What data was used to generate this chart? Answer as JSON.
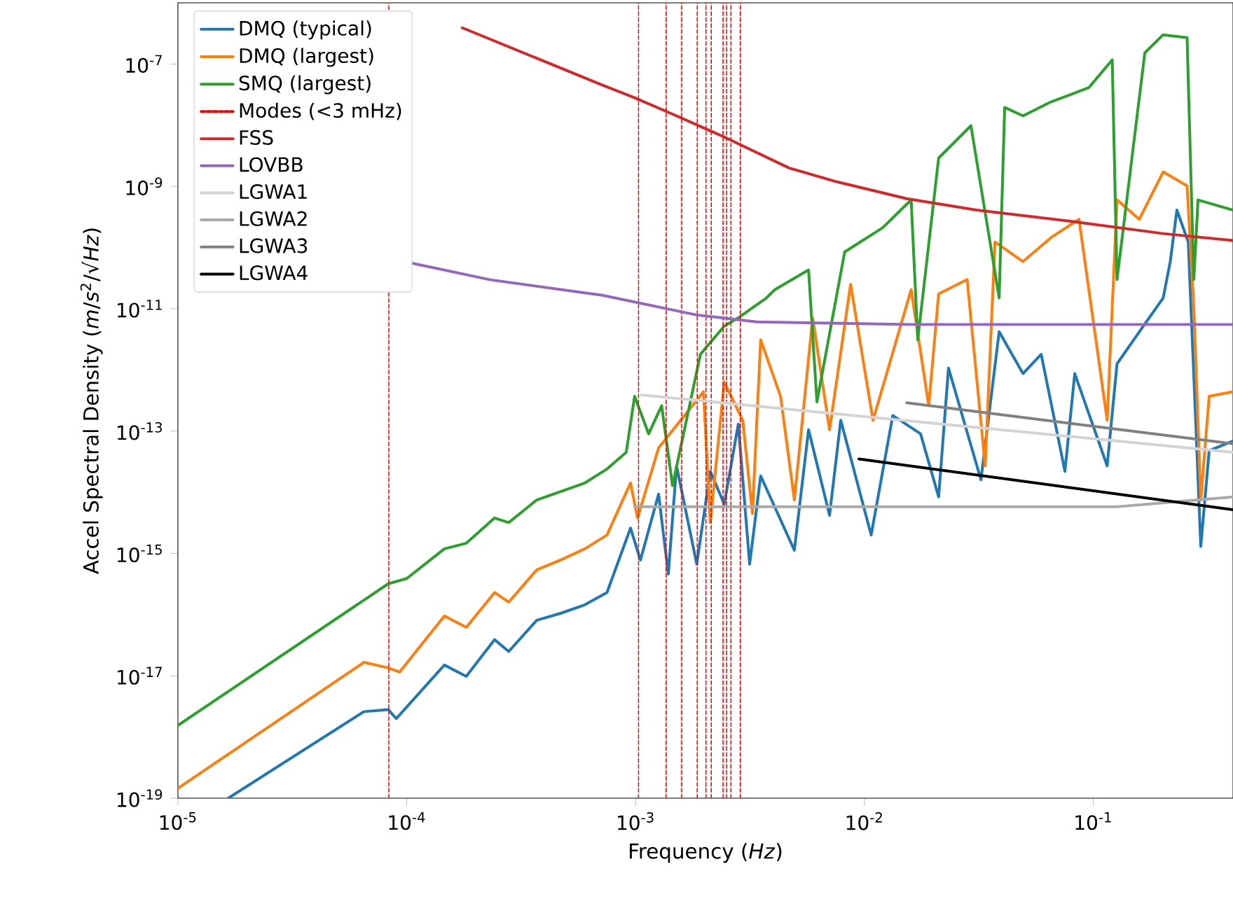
{
  "chart_data": {
    "type": "line",
    "xlabel": "Frequency (*Hz*)",
    "ylabel": "Accel Spectral Density (*m*/*s*$^{2}$/√*Hz*)",
    "log": "xy",
    "legend": "top left",
    "xlim": [
      1e-05,
      0.408
    ],
    "ylim": [
      1e-19,
      1e-06
    ],
    "xticks": [
      {
        "value": 1e-05,
        "label": "10$^{-5}$"
      },
      {
        "value": 0.0001,
        "label": "10$^{-4}$"
      },
      {
        "value": 0.001,
        "label": "10$^{-3}$"
      },
      {
        "value": 0.01,
        "label": "10$^{-2}$"
      },
      {
        "value": 0.1,
        "label": "10$^{-1}$"
      }
    ],
    "yticks": [
      {
        "value": 1e-19,
        "label": "10$^{-19}$"
      },
      {
        "value": 1e-17,
        "label": "10$^{-17}$"
      },
      {
        "value": 1e-15,
        "label": "10$^{-15}$"
      },
      {
        "value": 1e-13,
        "label": "10$^{-13}$"
      },
      {
        "value": 1e-11,
        "label": "10$^{-11}$"
      },
      {
        "value": 1e-09,
        "label": "10$^{-9}$"
      },
      {
        "value": 1e-07,
        "label": "10$^{-7}$"
      }
    ],
    "series": [
      {
        "name": "DMQ (typical)",
        "color": "#1f77b4",
        "x": [
          1.66e-05,
          6.5e-05,
          8.3e-05,
          9e-05,
          0.000146,
          0.000182,
          0.000242,
          0.000279,
          0.00037,
          0.00047,
          0.0006,
          0.00075,
          0.00095,
          0.00105,
          0.00126,
          0.00139,
          0.00151,
          0.00185,
          0.00212,
          0.00244,
          0.00281,
          0.00315,
          0.00352,
          0.00494,
          0.0057,
          0.00704,
          0.00788,
          0.0107,
          0.0133,
          0.0176,
          0.0211,
          0.0233,
          0.0323,
          0.0388,
          0.0493,
          0.0592,
          0.0752,
          0.083,
          0.115,
          0.127,
          0.159,
          0.202,
          0.217,
          0.232,
          0.26,
          0.279,
          0.295,
          0.321,
          0.408
        ],
        "values": [
          1e-19,
          2.6e-18,
          2.8e-18,
          2e-18,
          1.5e-17,
          9.8e-18,
          3.9e-17,
          2.5e-17,
          8.1e-17,
          1.05e-16,
          1.45e-16,
          2.3e-16,
          2.6e-15,
          7.8e-16,
          9.3e-15,
          4.6e-16,
          2.7e-14,
          6.7e-16,
          2.2e-14,
          6.4e-15,
          1.3e-13,
          6.7e-16,
          1.85e-14,
          1.13e-15,
          1.05e-13,
          4.2e-15,
          1.5e-13,
          2e-15,
          1.8e-13,
          9e-14,
          8.4e-15,
          1.07e-12,
          1.6e-14,
          4.2e-12,
          8.7e-13,
          1.8e-12,
          2.2e-14,
          8.7e-13,
          2.7e-14,
          1.26e-12,
          4.2e-12,
          1.5e-11,
          5.9e-11,
          4.1e-10,
          1.23e-10,
          2.2e-13,
          1.3e-15,
          4.8e-14,
          6.9e-14
        ]
      },
      {
        "name": "DMQ (largest)",
        "color": "#ff7f0e",
        "x": [
          1e-05,
          6.5e-05,
          8.3e-05,
          9.3e-05,
          0.000146,
          0.000182,
          0.000242,
          0.000279,
          0.00037,
          0.00047,
          0.0006,
          0.00075,
          0.00095,
          0.00102,
          0.00126,
          0.00198,
          0.00212,
          0.00244,
          0.00294,
          0.00324,
          0.00352,
          0.0043,
          0.00494,
          0.00594,
          0.00704,
          0.0087,
          0.0109,
          0.016,
          0.0191,
          0.0211,
          0.0281,
          0.0337,
          0.0372,
          0.0493,
          0.0653,
          0.0866,
          0.115,
          0.127,
          0.159,
          0.202,
          0.257,
          0.275,
          0.295,
          0.321,
          0.408
        ],
        "values": [
          1.45e-19,
          1.66e-17,
          1.35e-17,
          1.15e-17,
          9.5e-17,
          6.2e-17,
          2.3e-16,
          1.6e-16,
          5.4e-16,
          7.8e-16,
          1.19e-15,
          2e-15,
          1.42e-14,
          3.8e-15,
          5.3e-14,
          4.4e-13,
          3.2e-15,
          6.3e-13,
          1.5e-13,
          4.5e-15,
          3.1e-12,
          3.7e-13,
          7.5e-15,
          7.1e-12,
          1.05e-13,
          2.5e-11,
          1.5e-13,
          2.05e-11,
          2.6e-13,
          1.75e-11,
          3e-11,
          2.7e-14,
          1.23e-10,
          5.9e-11,
          1.45e-10,
          2.9e-10,
          1.5e-13,
          6e-10,
          2.9e-10,
          1.72e-09,
          1.02e-09,
          1.04e-11,
          7.5e-15,
          3.7e-13,
          4.4e-13
        ]
      },
      {
        "name": "SMQ (largest)",
        "color": "#2ca02c",
        "x": [
          1e-05,
          8.3e-05,
          0.0001,
          0.000146,
          0.000182,
          0.000242,
          0.000279,
          0.00037,
          0.0006,
          0.00075,
          0.00091,
          0.00099,
          0.00114,
          0.0013,
          0.00145,
          0.00192,
          0.00244,
          0.00281,
          0.00373,
          0.00406,
          0.0057,
          0.0062,
          0.0082,
          0.012,
          0.016,
          0.0171,
          0.0211,
          0.0292,
          0.0388,
          0.041,
          0.0493,
          0.0653,
          0.0956,
          0.121,
          0.127,
          0.168,
          0.202,
          0.257,
          0.275,
          0.287,
          0.408
        ],
        "values": [
          1.55e-18,
          3.2e-16,
          3.9e-16,
          1.19e-15,
          1.47e-15,
          3.8e-15,
          3.2e-15,
          7.5e-15,
          1.42e-14,
          2.4e-14,
          4.5e-14,
          3.7e-13,
          9e-14,
          2.6e-13,
          1.28e-14,
          1.8e-12,
          5.2e-12,
          7.1e-12,
          1.5e-11,
          2.05e-11,
          4.3e-11,
          3e-13,
          8.5e-11,
          2.1e-10,
          6e-10,
          3.1e-12,
          2.9e-09,
          9.8e-09,
          1.5e-11,
          1.95e-08,
          1.42e-08,
          2.4e-08,
          4.1e-08,
          1.17e-07,
          3e-11,
          1.52e-07,
          3e-07,
          2.7e-07,
          3e-11,
          6e-10,
          4.1e-10
        ]
      },
      {
        "name": "FSS",
        "color": "#d62728",
        "x": [
          0.000175,
          0.000717,
          0.00099,
          0.00151,
          0.00244,
          0.00468,
          0.00755,
          0.0153,
          0.0309,
          0.0785,
          0.202,
          0.408
        ],
        "values": [
          3.9e-07,
          4.5e-08,
          2.8e-08,
          1.42e-08,
          6.4e-09,
          2e-09,
          1.19e-09,
          6.3e-10,
          4.1e-10,
          2.7e-10,
          1.69e-10,
          1.3e-10
        ]
      },
      {
        "name": "LOVBB",
        "color": "#9467bd",
        "x": [
          0.000104,
          0.000232,
          0.000717,
          0.00185,
          0.00338,
          0.016,
          0.408
        ],
        "values": [
          5.6e-11,
          2.97e-11,
          1.66e-11,
          7.9e-12,
          6.1e-12,
          5.5e-12,
          5.5e-12
        ]
      },
      {
        "name": "LGWA1",
        "color": "#d3d3d3",
        "x": [
          0.00106,
          0.408
        ],
        "values": [
          3.9e-13,
          4.5e-14
        ]
      },
      {
        "name": "LGWA2",
        "color": "#a9a9a9",
        "x": [
          0.00099,
          0.127,
          0.408
        ],
        "values": [
          5.8e-15,
          5.8e-15,
          8.4e-15
        ]
      },
      {
        "name": "LGWA3",
        "color": "#808080",
        "x": [
          0.0153,
          0.408
        ],
        "values": [
          2.9e-13,
          6.2e-14
        ]
      },
      {
        "name": "LGWA4",
        "color": "#000000",
        "x": [
          0.00946,
          0.408
        ],
        "values": [
          3.5e-14,
          5.2e-15
        ]
      }
    ],
    "ref_lines": [
      {
        "axis": "x",
        "value": 8.35e-05,
        "label": "Modes (<3 mHz)",
        "color": "#ff0000",
        "line_style": "dashed"
      },
      {
        "axis": "x",
        "value": 0.00103,
        "color": "#ff0000",
        "line_style": "dashed"
      },
      {
        "axis": "x",
        "value": 0.00136,
        "color": "#ff0000",
        "line_style": "dashed"
      },
      {
        "axis": "x",
        "value": 0.00159,
        "color": "#ff0000",
        "line_style": "dashed"
      },
      {
        "axis": "x",
        "value": 0.00186,
        "color": "#ff0000",
        "line_style": "dashed"
      },
      {
        "axis": "x",
        "value": 0.00203,
        "color": "#ff0000",
        "line_style": "dashed"
      },
      {
        "axis": "x",
        "value": 0.00214,
        "color": "#ff0000",
        "line_style": "dashed"
      },
      {
        "axis": "x",
        "value": 0.00241,
        "color": "#ff0000",
        "line_style": "dashed"
      },
      {
        "axis": "x",
        "value": 0.0025,
        "color": "#ff0000",
        "line_style": "dashed"
      },
      {
        "axis": "x",
        "value": 0.00261,
        "color": "#ff0000",
        "line_style": "dashed"
      },
      {
        "axis": "x",
        "value": 0.00287,
        "color": "#ff0000",
        "line_style": "dashed"
      }
    ]
  }
}
